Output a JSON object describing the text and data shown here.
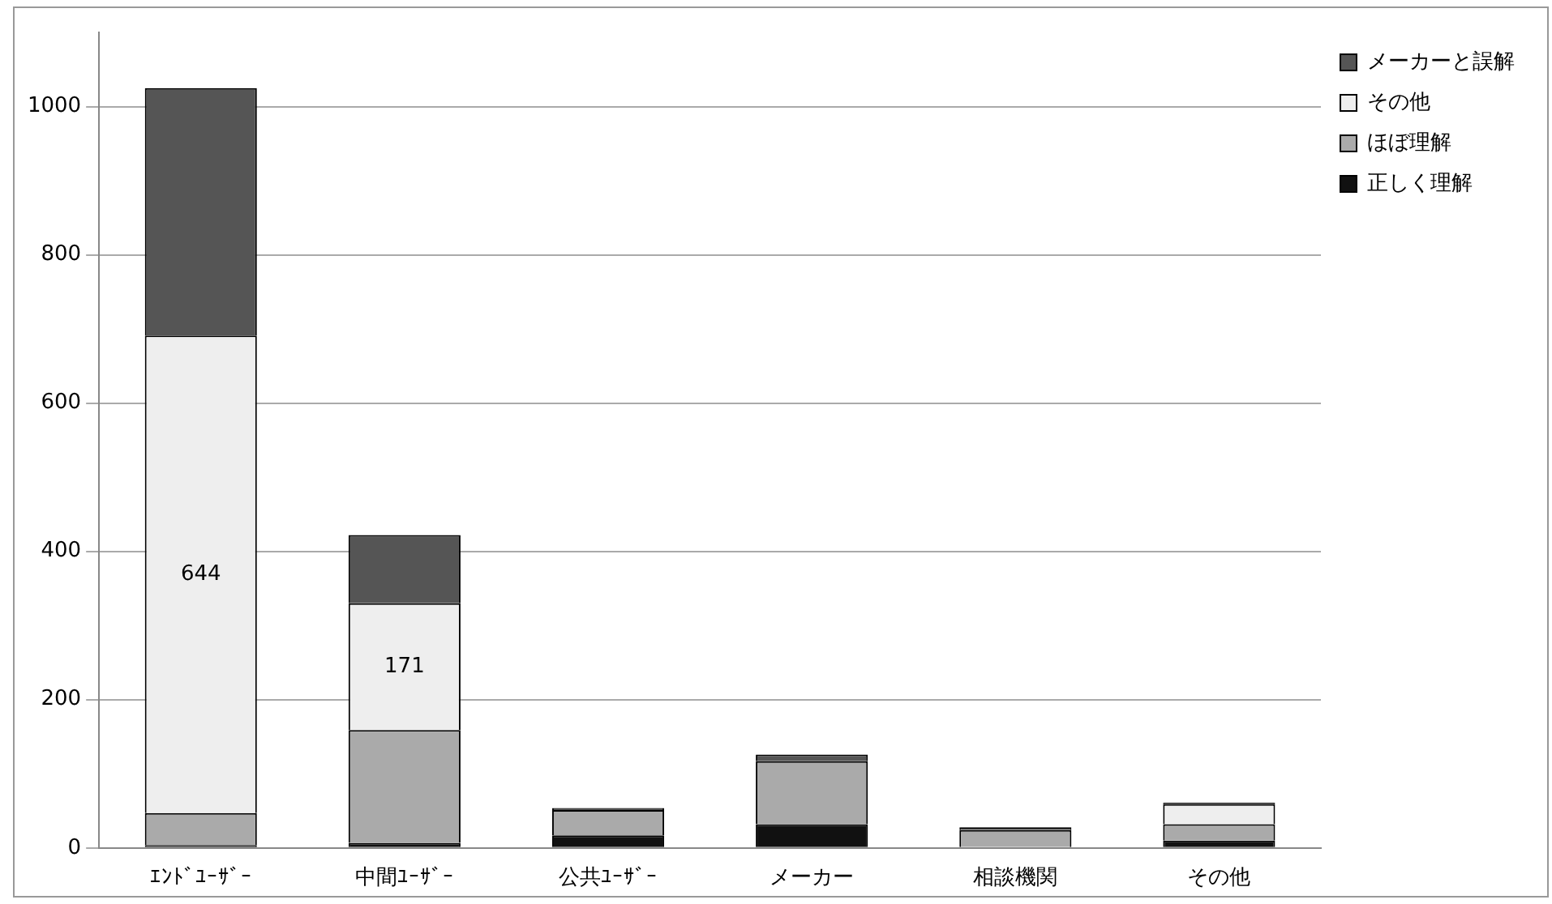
{
  "chart_data": {
    "type": "bar",
    "stacked": true,
    "categories": [
      "ｴﾝﾄﾞﾕｰｻﾞｰ",
      "中間ﾕｰｻﾞｰ",
      "公共ﾕｰｻﾞｰ",
      "メーカー",
      "相談機関",
      "その他"
    ],
    "series": [
      {
        "name": "正しく理解",
        "color": "#111111",
        "values": [
          4,
          7,
          17,
          32,
          null,
          10
        ]
      },
      {
        "name": "ほぼ理解",
        "color": "#aaaaaa",
        "values": [
          43,
          152,
          34,
          85,
          24,
          22
        ]
      },
      {
        "name": "その他",
        "color": "#eeeeee",
        "values": [
          644,
          171,
          0,
          0,
          0,
          27
        ],
        "value_labels": [
          "644",
          "171",
          null,
          null,
          null,
          null
        ]
      },
      {
        "name": "メーカーと誤解",
        "color": "#555555",
        "values": [
          334,
          92,
          3,
          9,
          4,
          2
        ]
      }
    ],
    "ylim": [
      0,
      1100
    ],
    "yticks": [
      0,
      200,
      400,
      600,
      800,
      1000
    ],
    "grid": "y",
    "legend": "right"
  }
}
